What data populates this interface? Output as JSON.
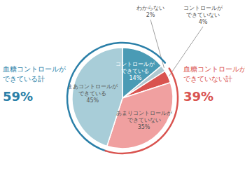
{
  "chart_data": {
    "type": "pie",
    "categories": [
      "コントロールが\nできている",
      "わからない",
      "コントロールが\nできていない",
      "あまりコントロールが\nできていない",
      "まあコントロールが\nできている"
    ],
    "values": [
      14,
      2,
      4,
      35,
      45
    ],
    "value_labels": [
      "14%",
      "2%",
      "4%",
      "35%",
      "45%"
    ],
    "colors": [
      "#4a9bb5",
      "#b0c8d0",
      "#d9534f",
      "#f0a0a0",
      "#a8cdd8"
    ],
    "data_labels": true,
    "annotations": [
      {
        "text": "血糖コントロールが\nできている計",
        "value": 59,
        "label": "59%",
        "color": "#2a7fa8"
      },
      {
        "text": "血糖コントロールが\nできていない計",
        "value": 39,
        "label": "39%",
        "color": "#d9534f"
      }
    ]
  }
}
